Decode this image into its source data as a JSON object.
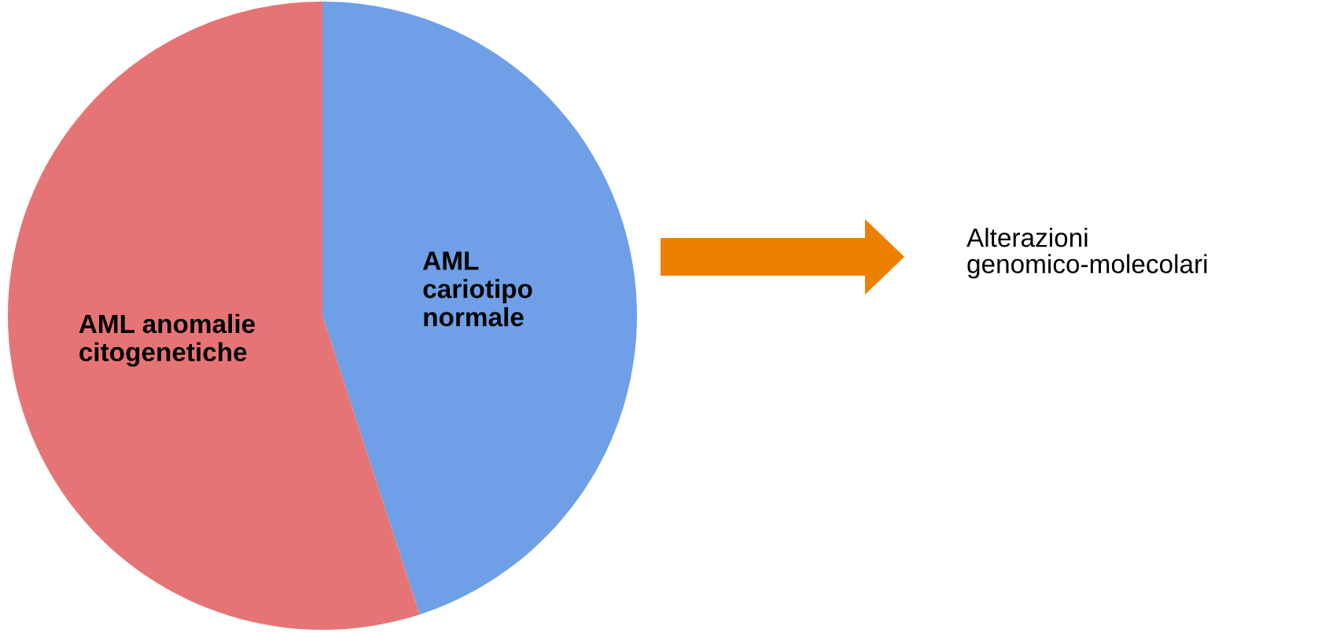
{
  "chart_data": {
    "type": "pie",
    "categories": [
      "AML\ncariotipo\nnormale",
      "AML anomalie\ncitogenetiche"
    ],
    "values": [
      45,
      55
    ],
    "colors": [
      "#6f9fe6",
      "#e77474"
    ],
    "annotations": [
      "Alterazioni\ngenomico-molecolari"
    ]
  }
}
